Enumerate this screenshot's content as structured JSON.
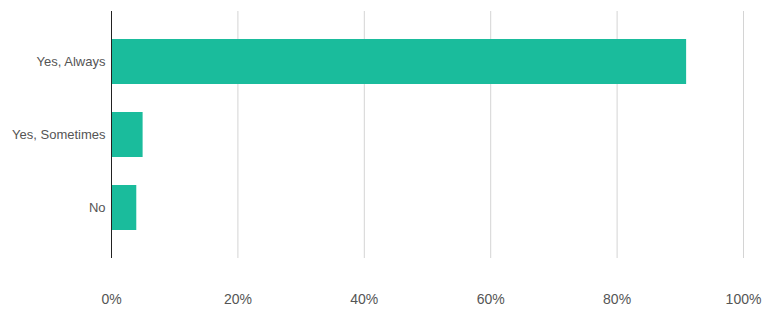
{
  "chart_data": {
    "type": "bar",
    "orientation": "horizontal",
    "categories": [
      "Yes, Always",
      "Yes, Sometimes",
      "No"
    ],
    "values": [
      91,
      5,
      4
    ],
    "color": "#1abc9c",
    "xlim": [
      0,
      100
    ],
    "xticks": [
      {
        "value": 0,
        "label": "0%"
      },
      {
        "value": 20,
        "label": "20%"
      },
      {
        "value": 40,
        "label": "40%"
      },
      {
        "value": 60,
        "label": "60%"
      },
      {
        "value": 80,
        "label": "80%"
      },
      {
        "value": 100,
        "label": "100%"
      }
    ],
    "grid": true
  }
}
